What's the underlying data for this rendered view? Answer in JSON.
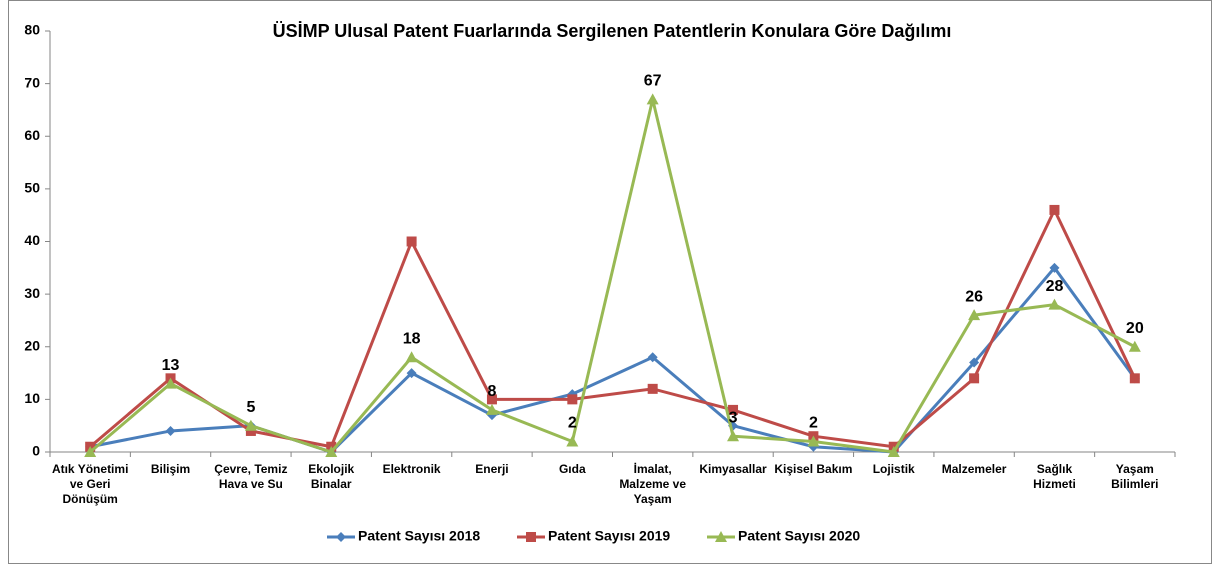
{
  "chart_data": {
    "type": "line",
    "title": "ÜSİMP Ulusal Patent Fuarlarında Sergilenen Patentlerin Konulara Göre Dağılımı",
    "categories": [
      "Atık Yönetimi ve Geri Dönüşüm",
      "Bilişim",
      "Çevre, Temiz Hava ve Su",
      "Ekolojik Binalar",
      "Elektronik",
      "Enerji",
      "Gıda",
      "İmalat, Malzeme ve Yaşam",
      "Kimyasallar",
      "Kişisel Bakım",
      "Lojistik",
      "Malzemeler",
      "Sağlık Hizmeti",
      "Yaşam Bilimleri"
    ],
    "series": [
      {
        "name": "Patent Sayısı 2018",
        "color": "#4a7ebb",
        "marker": "diamond",
        "values": [
          1,
          4,
          5,
          0,
          15,
          7,
          11,
          18,
          5,
          1,
          0,
          17,
          35,
          14
        ]
      },
      {
        "name": "Patent Sayısı 2019",
        "color": "#be4b48",
        "marker": "square",
        "values": [
          1,
          14,
          4,
          1,
          40,
          10,
          10,
          12,
          8,
          3,
          1,
          14,
          46,
          14
        ]
      },
      {
        "name": "Patent Sayısı 2020",
        "color": "#98b954",
        "marker": "triangle",
        "values": [
          0,
          13,
          5,
          0,
          18,
          8,
          2,
          67,
          3,
          2,
          0,
          26,
          28,
          20
        ],
        "value_labels": [
          null,
          "13",
          "5",
          null,
          "18",
          "8",
          "2",
          "67",
          "3",
          "2",
          null,
          "26",
          "28",
          "20"
        ]
      }
    ],
    "ylim": [
      0,
      80
    ],
    "yticks": [
      0,
      10,
      20,
      30,
      40,
      50,
      60,
      70,
      80
    ],
    "grid": false,
    "legend": "bottom"
  }
}
